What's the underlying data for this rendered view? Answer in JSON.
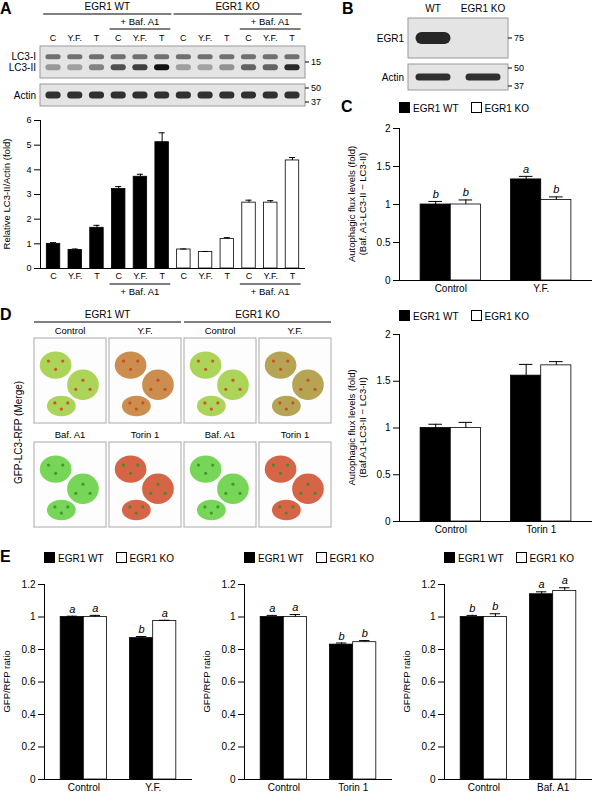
{
  "blots": [
    {
      "panel": "A",
      "groups": [
        {
          "label": "EGR1 WT",
          "lanes": [
            "C",
            "Y.F.",
            "T",
            "C",
            "Y.F.",
            "T"
          ],
          "treatment": [
            null,
            null,
            null,
            "+ Baf. A1",
            "+ Baf. A1",
            "+ Baf. A1"
          ]
        },
        {
          "label": "EGR1 KO",
          "lanes": [
            "C",
            "Y.F.",
            "T",
            "C",
            "Y.F.",
            "T"
          ],
          "treatment": [
            null,
            null,
            null,
            "+ Baf. A1",
            "+ Baf. A1",
            "+ Baf. A1"
          ]
        }
      ],
      "rows": [
        {
          "labels": [
            "LC3-I",
            "LC3-II"
          ],
          "markers": [
            15
          ]
        },
        {
          "labels": [
            "Actin"
          ],
          "markers": [
            50,
            37
          ]
        }
      ]
    },
    {
      "panel": "B",
      "lanes": [
        "WT",
        "EGR1 KO"
      ],
      "rows": [
        {
          "labels": [
            "EGR1"
          ],
          "markers": [
            75
          ]
        },
        {
          "labels": [
            "Actin"
          ],
          "markers": [
            50,
            37
          ]
        }
      ]
    }
  ],
  "images": {
    "panel": "D",
    "side_label": "GFP-LC3-RFP (Merge)",
    "groups": [
      "EGR1 WT",
      "EGR1 KO"
    ],
    "rows": [
      [
        "Control",
        "Y.F.",
        "Control",
        "Y.F."
      ],
      [
        "Baf. A1",
        "Torin 1",
        "Baf. A1",
        "Torin 1"
      ]
    ]
  },
  "chart_data": [
    {
      "type": "bar",
      "ylabel": "Relative LC3-II/Actin (fold)",
      "categories": [
        "C",
        "Y.F.",
        "T",
        "C",
        "Y.F.",
        "T"
      ],
      "category_groups": [
        null,
        null,
        null,
        "+ Baf. A1",
        "+ Baf. A1",
        "+ Baf. A1"
      ],
      "ylim": [
        0,
        6
      ],
      "yticks": [
        0,
        1,
        2,
        3,
        4,
        5,
        6
      ],
      "grid": false,
      "series": [
        {
          "color": "#000000",
          "values": [
            1.0,
            0.75,
            1.65,
            3.22,
            3.72,
            5.12
          ],
          "error": [
            0.05,
            0.04,
            0.1,
            0.1,
            0.1,
            0.38
          ]
        },
        {
          "color": "#ffffff",
          "values": [
            0.77,
            0.67,
            1.2,
            2.67,
            2.67,
            4.38
          ],
          "error": [
            0.02,
            0.02,
            0.05,
            0.1,
            0.08,
            0.12
          ]
        }
      ]
    },
    {
      "type": "bar",
      "panel": "C",
      "ylabel": [
        "Autophagic flux levels (fold)",
        "(Baf. A1-LC3-II − LC3-II)"
      ],
      "categories": [
        "Control",
        "Y.F."
      ],
      "ylim": [
        0,
        2
      ],
      "yticks": [
        0,
        0.5,
        1,
        1.5,
        2
      ],
      "grid": false,
      "legend": "top-left",
      "series": [
        {
          "name": "EGR1 WT",
          "color": "#000000",
          "values": [
            1.0,
            1.33
          ],
          "error": [
            0.04,
            0.04
          ],
          "annotations": [
            "b",
            "a"
          ]
        },
        {
          "name": "EGR1 KO",
          "color": "#ffffff",
          "values": [
            1.0,
            1.06
          ],
          "error": [
            0.06,
            0.04
          ],
          "annotations": [
            "b",
            "b"
          ]
        }
      ]
    },
    {
      "type": "bar",
      "ylabel": [
        "Autophagic flux levels (fold)",
        "(Baf.A1-LC3-II − LC3-II)"
      ],
      "categories": [
        "Control",
        "Torin 1"
      ],
      "ylim": [
        0,
        2
      ],
      "yticks": [
        0,
        0.5,
        1,
        1.5,
        2
      ],
      "grid": false,
      "legend": "top-left",
      "series": [
        {
          "name": "EGR1 WT",
          "color": "#000000",
          "values": [
            1.0,
            1.56
          ],
          "error": [
            0.04,
            0.12
          ]
        },
        {
          "name": "EGR1 KO",
          "color": "#ffffff",
          "values": [
            1.0,
            1.67
          ],
          "error": [
            0.06,
            0.04
          ]
        }
      ]
    },
    {
      "type": "bar",
      "panel": "E",
      "ylabel": "GFP/RFP ratio",
      "categories": [
        "Control",
        "Y.F."
      ],
      "ylim": [
        0,
        1.2
      ],
      "yticks": [
        0,
        0.2,
        0.4,
        0.6,
        0.8,
        1,
        1.2
      ],
      "grid": false,
      "legend": "top-left",
      "series": [
        {
          "name": "EGR1 WT",
          "color": "#000000",
          "values": [
            1.0,
            0.87
          ],
          "error": [
            0.005,
            0.01
          ],
          "annotations": [
            "a",
            "b"
          ]
        },
        {
          "name": "EGR1 KO",
          "color": "#ffffff",
          "values": [
            1.0,
            0.975
          ],
          "error": [
            0.01,
            0.005
          ],
          "annotations": [
            "a",
            "a"
          ]
        }
      ]
    },
    {
      "type": "bar",
      "ylabel": "GFP/RFP ratio",
      "categories": [
        "Control",
        "Torin 1"
      ],
      "ylim": [
        0,
        1.2
      ],
      "yticks": [
        0,
        0.2,
        0.4,
        0.6,
        0.8,
        1,
        1.2
      ],
      "grid": false,
      "legend": "top-left",
      "series": [
        {
          "name": "EGR1 WT",
          "color": "#000000",
          "values": [
            1.0,
            0.83
          ],
          "error": [
            0.01,
            0.01
          ],
          "annotations": [
            "a",
            "b"
          ]
        },
        {
          "name": "EGR1 KO",
          "color": "#ffffff",
          "values": [
            1.0,
            0.845
          ],
          "error": [
            0.015,
            0.01
          ],
          "annotations": [
            "a",
            "b"
          ]
        }
      ]
    },
    {
      "type": "bar",
      "ylabel": "GFP/RFP ratio",
      "categories": [
        "Control",
        "Baf. A1"
      ],
      "ylim": [
        0,
        1.2
      ],
      "yticks": [
        0,
        0.2,
        0.4,
        0.6,
        0.8,
        1,
        1.2
      ],
      "grid": false,
      "legend": "top-left",
      "series": [
        {
          "name": "EGR1 WT",
          "color": "#000000",
          "values": [
            1.0,
            1.14
          ],
          "error": [
            0.01,
            0.015
          ],
          "annotations": [
            "b",
            "a"
          ]
        },
        {
          "name": "EGR1 KO",
          "color": "#ffffff",
          "values": [
            1.0,
            1.16
          ],
          "error": [
            0.02,
            0.02
          ],
          "annotations": [
            "b",
            "a"
          ]
        }
      ]
    }
  ]
}
